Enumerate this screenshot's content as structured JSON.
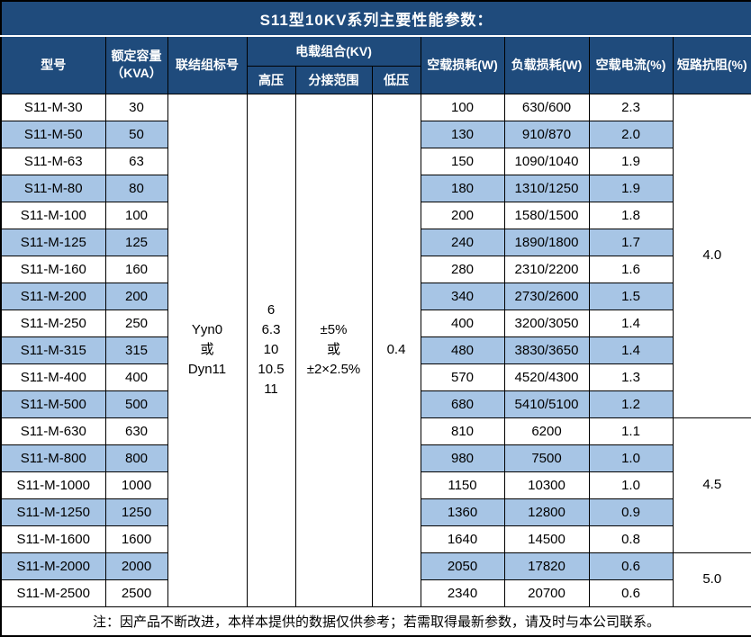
{
  "title": "S11型10KV系列主要性能参数：",
  "colors": {
    "header_bg": "#1f4b7c",
    "stripe_bg": "#a7c5e5",
    "row_bg": "#ffffff",
    "border": "#000000",
    "header_text": "#ffffff",
    "body_text": "#000000"
  },
  "header": {
    "model": "型号",
    "capacity": "额定容量\n（KVA）",
    "connection": "联结组标号",
    "voltage_group": "电载组合(KV)",
    "high_voltage": "高压",
    "tap_range": "分接范围",
    "low_voltage": "低压",
    "no_load_loss": "空载损耗(W)",
    "load_loss": "负载损耗(W)",
    "no_load_current": "空载电流(%)",
    "impedance": "短路抗阻(%)"
  },
  "merged": {
    "connection": "Yyn0\n或\nDyn11",
    "high_voltage": "6\n6.3\n10\n10.5\n11",
    "tap_range": "±5%\n或\n±2×2.5%",
    "low_voltage": "0.4"
  },
  "rows": [
    {
      "model": "S11-M-30",
      "capacity": "30",
      "no_load_loss": "100",
      "load_loss": "630/600",
      "no_load_current": "2.3"
    },
    {
      "model": "S11-M-50",
      "capacity": "50",
      "no_load_loss": "130",
      "load_loss": "910/870",
      "no_load_current": "2.0"
    },
    {
      "model": "S11-M-63",
      "capacity": "63",
      "no_load_loss": "150",
      "load_loss": "1090/1040",
      "no_load_current": "1.9"
    },
    {
      "model": "S11-M-80",
      "capacity": "80",
      "no_load_loss": "180",
      "load_loss": "1310/1250",
      "no_load_current": "1.9"
    },
    {
      "model": "S11-M-100",
      "capacity": "100",
      "no_load_loss": "200",
      "load_loss": "1580/1500",
      "no_load_current": "1.8"
    },
    {
      "model": "S11-M-125",
      "capacity": "125",
      "no_load_loss": "240",
      "load_loss": "1890/1800",
      "no_load_current": "1.7"
    },
    {
      "model": "S11-M-160",
      "capacity": "160",
      "no_load_loss": "280",
      "load_loss": "2310/2200",
      "no_load_current": "1.6"
    },
    {
      "model": "S11-M-200",
      "capacity": "200",
      "no_load_loss": "340",
      "load_loss": "2730/2600",
      "no_load_current": "1.5"
    },
    {
      "model": "S11-M-250",
      "capacity": "250",
      "no_load_loss": "400",
      "load_loss": "3200/3050",
      "no_load_current": "1.4"
    },
    {
      "model": "S11-M-315",
      "capacity": "315",
      "no_load_loss": "480",
      "load_loss": "3830/3650",
      "no_load_current": "1.4"
    },
    {
      "model": "S11-M-400",
      "capacity": "400",
      "no_load_loss": "570",
      "load_loss": "4520/4300",
      "no_load_current": "1.3"
    },
    {
      "model": "S11-M-500",
      "capacity": "500",
      "no_load_loss": "680",
      "load_loss": "5410/5100",
      "no_load_current": "1.2"
    },
    {
      "model": "S11-M-630",
      "capacity": "630",
      "no_load_loss": "810",
      "load_loss": "6200",
      "no_load_current": "1.1"
    },
    {
      "model": "S11-M-800",
      "capacity": "800",
      "no_load_loss": "980",
      "load_loss": "7500",
      "no_load_current": "1.0"
    },
    {
      "model": "S11-M-1000",
      "capacity": "1000",
      "no_load_loss": "1150",
      "load_loss": "10300",
      "no_load_current": "1.0"
    },
    {
      "model": "S11-M-1250",
      "capacity": "1250",
      "no_load_loss": "1360",
      "load_loss": "12800",
      "no_load_current": "0.9"
    },
    {
      "model": "S11-M-1600",
      "capacity": "1600",
      "no_load_loss": "1640",
      "load_loss": "14500",
      "no_load_current": "0.8"
    },
    {
      "model": "S11-M-2000",
      "capacity": "2000",
      "no_load_loss": "2050",
      "load_loss": "17820",
      "no_load_current": "0.6"
    },
    {
      "model": "S11-M-2500",
      "capacity": "2500",
      "no_load_loss": "2340",
      "load_loss": "20700",
      "no_load_current": "0.6"
    }
  ],
  "impedance_groups": [
    {
      "value": "4.0",
      "rows": 12
    },
    {
      "value": "4.5",
      "rows": 5
    },
    {
      "value": "5.0",
      "rows": 2
    }
  ],
  "footer_note": "注：因产品不断改进，本样本提供的数据仅供参考；若需取得最新参数，请及时与本公司联系。"
}
